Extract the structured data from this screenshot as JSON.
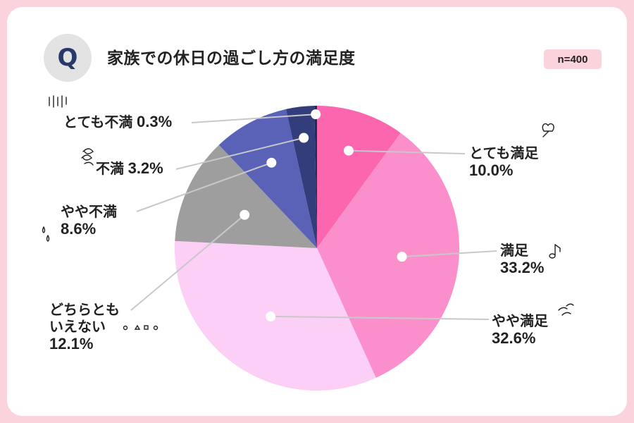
{
  "header": {
    "q_mark": "Q",
    "title": "家族での休日の過ごし方の満足度",
    "sample_size": "n=400"
  },
  "colors": {
    "frame": "#fbd3dc",
    "badge": "#fbd3dc",
    "q_circle": "#e3e3e3",
    "q_text": "#283a6b"
  },
  "chart_data": {
    "type": "pie",
    "start_angle": "12 o'clock",
    "direction": "clockwise",
    "categories": [
      "とても満足",
      "満足",
      "やや満足",
      "どちらともいえない",
      "やや不満",
      "不満",
      "とても不満"
    ],
    "values": [
      10.0,
      33.2,
      32.6,
      12.1,
      8.6,
      3.2,
      0.3
    ],
    "labels": [
      {
        "name": "とても満足",
        "pct": "10.0%"
      },
      {
        "name": "満足",
        "pct": "33.2%"
      },
      {
        "name": "やや満足",
        "pct": "32.6%"
      },
      {
        "name": "どちらともいえない",
        "name_lines": [
          "どちらとも",
          "いえない"
        ],
        "pct": "12.1%"
      },
      {
        "name": "やや不満",
        "pct": "8.6%"
      },
      {
        "name": "不満",
        "pct": "3.2%"
      },
      {
        "name": "とても不満",
        "pct": "0.3%"
      }
    ],
    "colors": [
      "#fb66ae",
      "#fb8fcc",
      "#fccff7",
      "#9e9e9e",
      "#5a62b8",
      "#333d7c",
      "#1e2a5a"
    ]
  }
}
